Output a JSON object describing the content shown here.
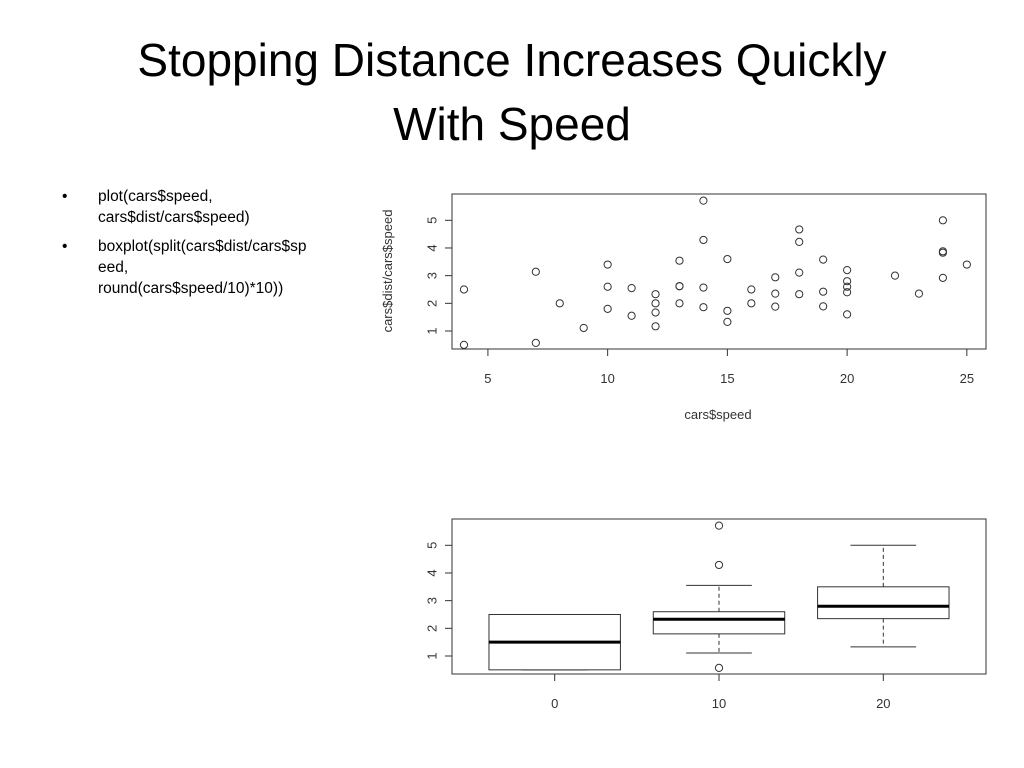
{
  "slide": {
    "title_lines": [
      "Stopping Distance Increases Quickly",
      "With Speed"
    ],
    "bullets": [
      {
        "lines": [
          "plot(cars$speed,",
          "cars$dist/cars$speed)"
        ]
      },
      {
        "lines": [
          "boxplot(split(cars$dist/cars$sp",
          "eed,",
          "round(cars$speed/10)*10))"
        ]
      }
    ],
    "bullet_glyph": "•"
  },
  "chart_data": [
    {
      "type": "scatter",
      "title": "",
      "xlabel": "cars$speed",
      "ylabel": "cars$dist/cars$speed",
      "xlim": [
        3.5,
        25.8
      ],
      "ylim": [
        0.35,
        5.95
      ],
      "xticks": [
        5,
        10,
        15,
        20,
        25
      ],
      "yticks": [
        1,
        2,
        3,
        4,
        5
      ],
      "grid": false,
      "points": [
        [
          4,
          0.5
        ],
        [
          4,
          2.5
        ],
        [
          7,
          0.57
        ],
        [
          7,
          3.14
        ],
        [
          8,
          2.0
        ],
        [
          9,
          1.11
        ],
        [
          10,
          1.8
        ],
        [
          10,
          2.6
        ],
        [
          10,
          3.4
        ],
        [
          11,
          1.55
        ],
        [
          11,
          2.55
        ],
        [
          12,
          1.17
        ],
        [
          12,
          1.67
        ],
        [
          12,
          2.0
        ],
        [
          12,
          2.33
        ],
        [
          13,
          2.0
        ],
        [
          13,
          2.62
        ],
        [
          13,
          2.62
        ],
        [
          13,
          3.54
        ],
        [
          14,
          1.86
        ],
        [
          14,
          2.57
        ],
        [
          14,
          4.29
        ],
        [
          14,
          5.71
        ],
        [
          15,
          1.33
        ],
        [
          15,
          1.73
        ],
        [
          15,
          3.6
        ],
        [
          16,
          2.0
        ],
        [
          16,
          2.5
        ],
        [
          17,
          1.88
        ],
        [
          17,
          2.35
        ],
        [
          17,
          2.94
        ],
        [
          18,
          2.33
        ],
        [
          18,
          3.11
        ],
        [
          18,
          4.22
        ],
        [
          18,
          4.67
        ],
        [
          19,
          1.89
        ],
        [
          19,
          2.42
        ],
        [
          19,
          3.58
        ],
        [
          20,
          1.6
        ],
        [
          20,
          2.4
        ],
        [
          20,
          2.6
        ],
        [
          20,
          2.8
        ],
        [
          20,
          3.2
        ],
        [
          22,
          3.0
        ],
        [
          23,
          2.35
        ],
        [
          24,
          2.92
        ],
        [
          24,
          3.83
        ],
        [
          24,
          3.88
        ],
        [
          24,
          5.0
        ],
        [
          25,
          3.4
        ]
      ]
    },
    {
      "type": "boxplot",
      "title": "",
      "xlabel": "",
      "ylabel": "",
      "ylim": [
        0.35,
        5.95
      ],
      "yticks": [
        1,
        2,
        3,
        4,
        5
      ],
      "categories": [
        "0",
        "10",
        "20"
      ],
      "boxes": [
        {
          "category": "0",
          "whisker_low": 0.5,
          "q1": 0.5,
          "median": 1.5,
          "q3": 2.5,
          "whisker_high": 2.5,
          "outliers": []
        },
        {
          "category": "10",
          "whisker_low": 1.11,
          "q1": 1.8,
          "median": 2.33,
          "q3": 2.6,
          "whisker_high": 3.55,
          "outliers": [
            0.57,
            4.29,
            5.71
          ]
        },
        {
          "category": "20",
          "whisker_low": 1.33,
          "q1": 2.35,
          "median": 2.8,
          "q3": 3.5,
          "whisker_high": 5.0,
          "outliers": []
        }
      ]
    }
  ]
}
